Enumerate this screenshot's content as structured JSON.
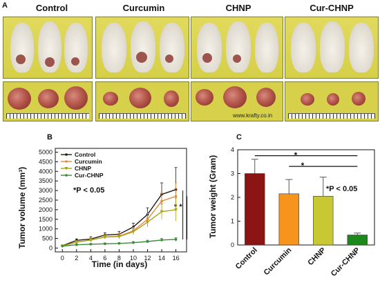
{
  "panel_a": {
    "letter": "A",
    "groups": [
      "Control",
      "Curcumin",
      "CHNP",
      "Cur-CHNP"
    ],
    "watermark": "www.krafty.co.in"
  },
  "panel_b": {
    "letter": "B",
    "significance": "*P < 0.05",
    "bracket_marks": "* *"
  },
  "panel_c": {
    "letter": "C",
    "significance": "*P < 0.05",
    "star_top": "*",
    "star_bottom": "*"
  },
  "chart_data": [
    {
      "type": "line",
      "xlabel": "Time (in days)",
      "ylabel": "Tumor volume (mm³)",
      "x": [
        0,
        2,
        4,
        6,
        8,
        10,
        12,
        14,
        16
      ],
      "xlim": [
        -1,
        17.5
      ],
      "ylim": [
        -200,
        5200
      ],
      "yticks": [
        0,
        500,
        1000,
        1500,
        2000,
        2500,
        3000,
        3500,
        4000,
        4500,
        5000
      ],
      "xticks": [
        0,
        2,
        4,
        6,
        8,
        10,
        12,
        14,
        16
      ],
      "legend_position": "top-left",
      "series": [
        {
          "name": "Control",
          "color": "#1a1a1a",
          "marker": "circle",
          "values": [
            120,
            400,
            470,
            680,
            720,
            1100,
            1750,
            2800,
            3050
          ],
          "errors": [
            40,
            80,
            120,
            120,
            150,
            200,
            350,
            600,
            1150
          ]
        },
        {
          "name": "Curcumin",
          "color": "#e8893a",
          "marker": "circle",
          "values": [
            110,
            310,
            420,
            580,
            620,
            900,
            1500,
            2450,
            2700
          ],
          "errors": [
            40,
            80,
            100,
            110,
            140,
            180,
            300,
            450,
            700
          ]
        },
        {
          "name": "CHNP",
          "color": "#a6a51c",
          "marker": "triangle",
          "values": [
            110,
            300,
            420,
            570,
            600,
            850,
            1350,
            1900,
            2000
          ],
          "errors": [
            40,
            80,
            100,
            100,
            120,
            150,
            250,
            400,
            600
          ]
        },
        {
          "name": "Cur-CHNP",
          "color": "#3a8a3a",
          "marker": "circle",
          "values": [
            100,
            170,
            200,
            220,
            240,
            280,
            340,
            420,
            450
          ],
          "errors": [
            30,
            40,
            40,
            50,
            50,
            60,
            70,
            80,
            90
          ]
        }
      ]
    },
    {
      "type": "bar",
      "ylabel": "Tumor weight (Gram)",
      "categories": [
        "Control",
        "Curcumin",
        "CHNP",
        "Cur-CHNP"
      ],
      "values": [
        3.0,
        2.15,
        2.05,
        0.42
      ],
      "errors": [
        0.6,
        0.6,
        0.8,
        0.08
      ],
      "colors": [
        "#8b1515",
        "#f7941d",
        "#c8c832",
        "#1b8a1b"
      ],
      "ylim": [
        0,
        4
      ],
      "yticks": [
        0,
        1,
        2,
        3,
        4
      ]
    }
  ]
}
